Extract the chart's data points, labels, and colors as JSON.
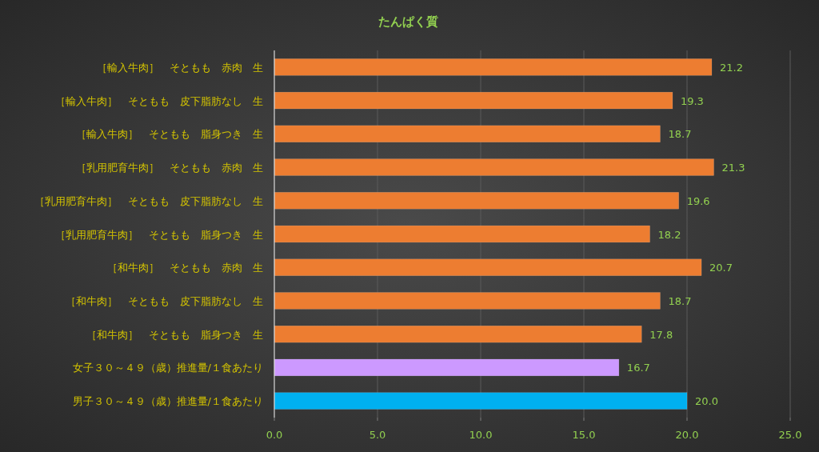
{
  "chart_data": {
    "type": "bar",
    "orientation": "horizontal",
    "title": "たんぱく質",
    "categories": [
      "［輸入牛肉］　そともも　赤肉　生",
      "［輸入牛肉］　そともも　皮下脂肪なし　生",
      "［輸入牛肉］　そともも　脂身つき　生",
      "［乳用肥育牛肉］　そともも　赤肉　生",
      "［乳用肥育牛肉］　そともも　皮下脂肪なし　生",
      "［乳用肥育牛肉］　そともも　脂身つき　生",
      "［和牛肉］　そともも　赤肉　生",
      "［和牛肉］　そともも　皮下脂肪なし　生",
      "［和牛肉］　そともも　脂身つき　生",
      "女子３０～４９（歳）推進量/１食あたり",
      "男子３０～４９（歳）推進量/１食あたり"
    ],
    "values": [
      21.2,
      19.3,
      18.7,
      21.3,
      19.6,
      18.2,
      20.7,
      18.7,
      17.8,
      16.7,
      20.0
    ],
    "value_labels": [
      "21.2",
      "19.3",
      "18.7",
      "21.3",
      "19.6",
      "18.2",
      "20.7",
      "18.7",
      "17.8",
      "16.7",
      "20.0"
    ],
    "colors": [
      "#ed7d31",
      "#ed7d31",
      "#ed7d31",
      "#ed7d31",
      "#ed7d31",
      "#ed7d31",
      "#ed7d31",
      "#ed7d31",
      "#ed7d31",
      "#cc99ff",
      "#00b0f0"
    ],
    "xlim": [
      0,
      25
    ],
    "xticks": [
      {
        "value": 0,
        "label": "0.0"
      },
      {
        "value": 5,
        "label": "5.0"
      },
      {
        "value": 10,
        "label": "10.0"
      },
      {
        "value": 15,
        "label": "15.0"
      },
      {
        "value": 20,
        "label": "20.0"
      },
      {
        "value": 25,
        "label": "25.0"
      }
    ],
    "grid": "x"
  }
}
